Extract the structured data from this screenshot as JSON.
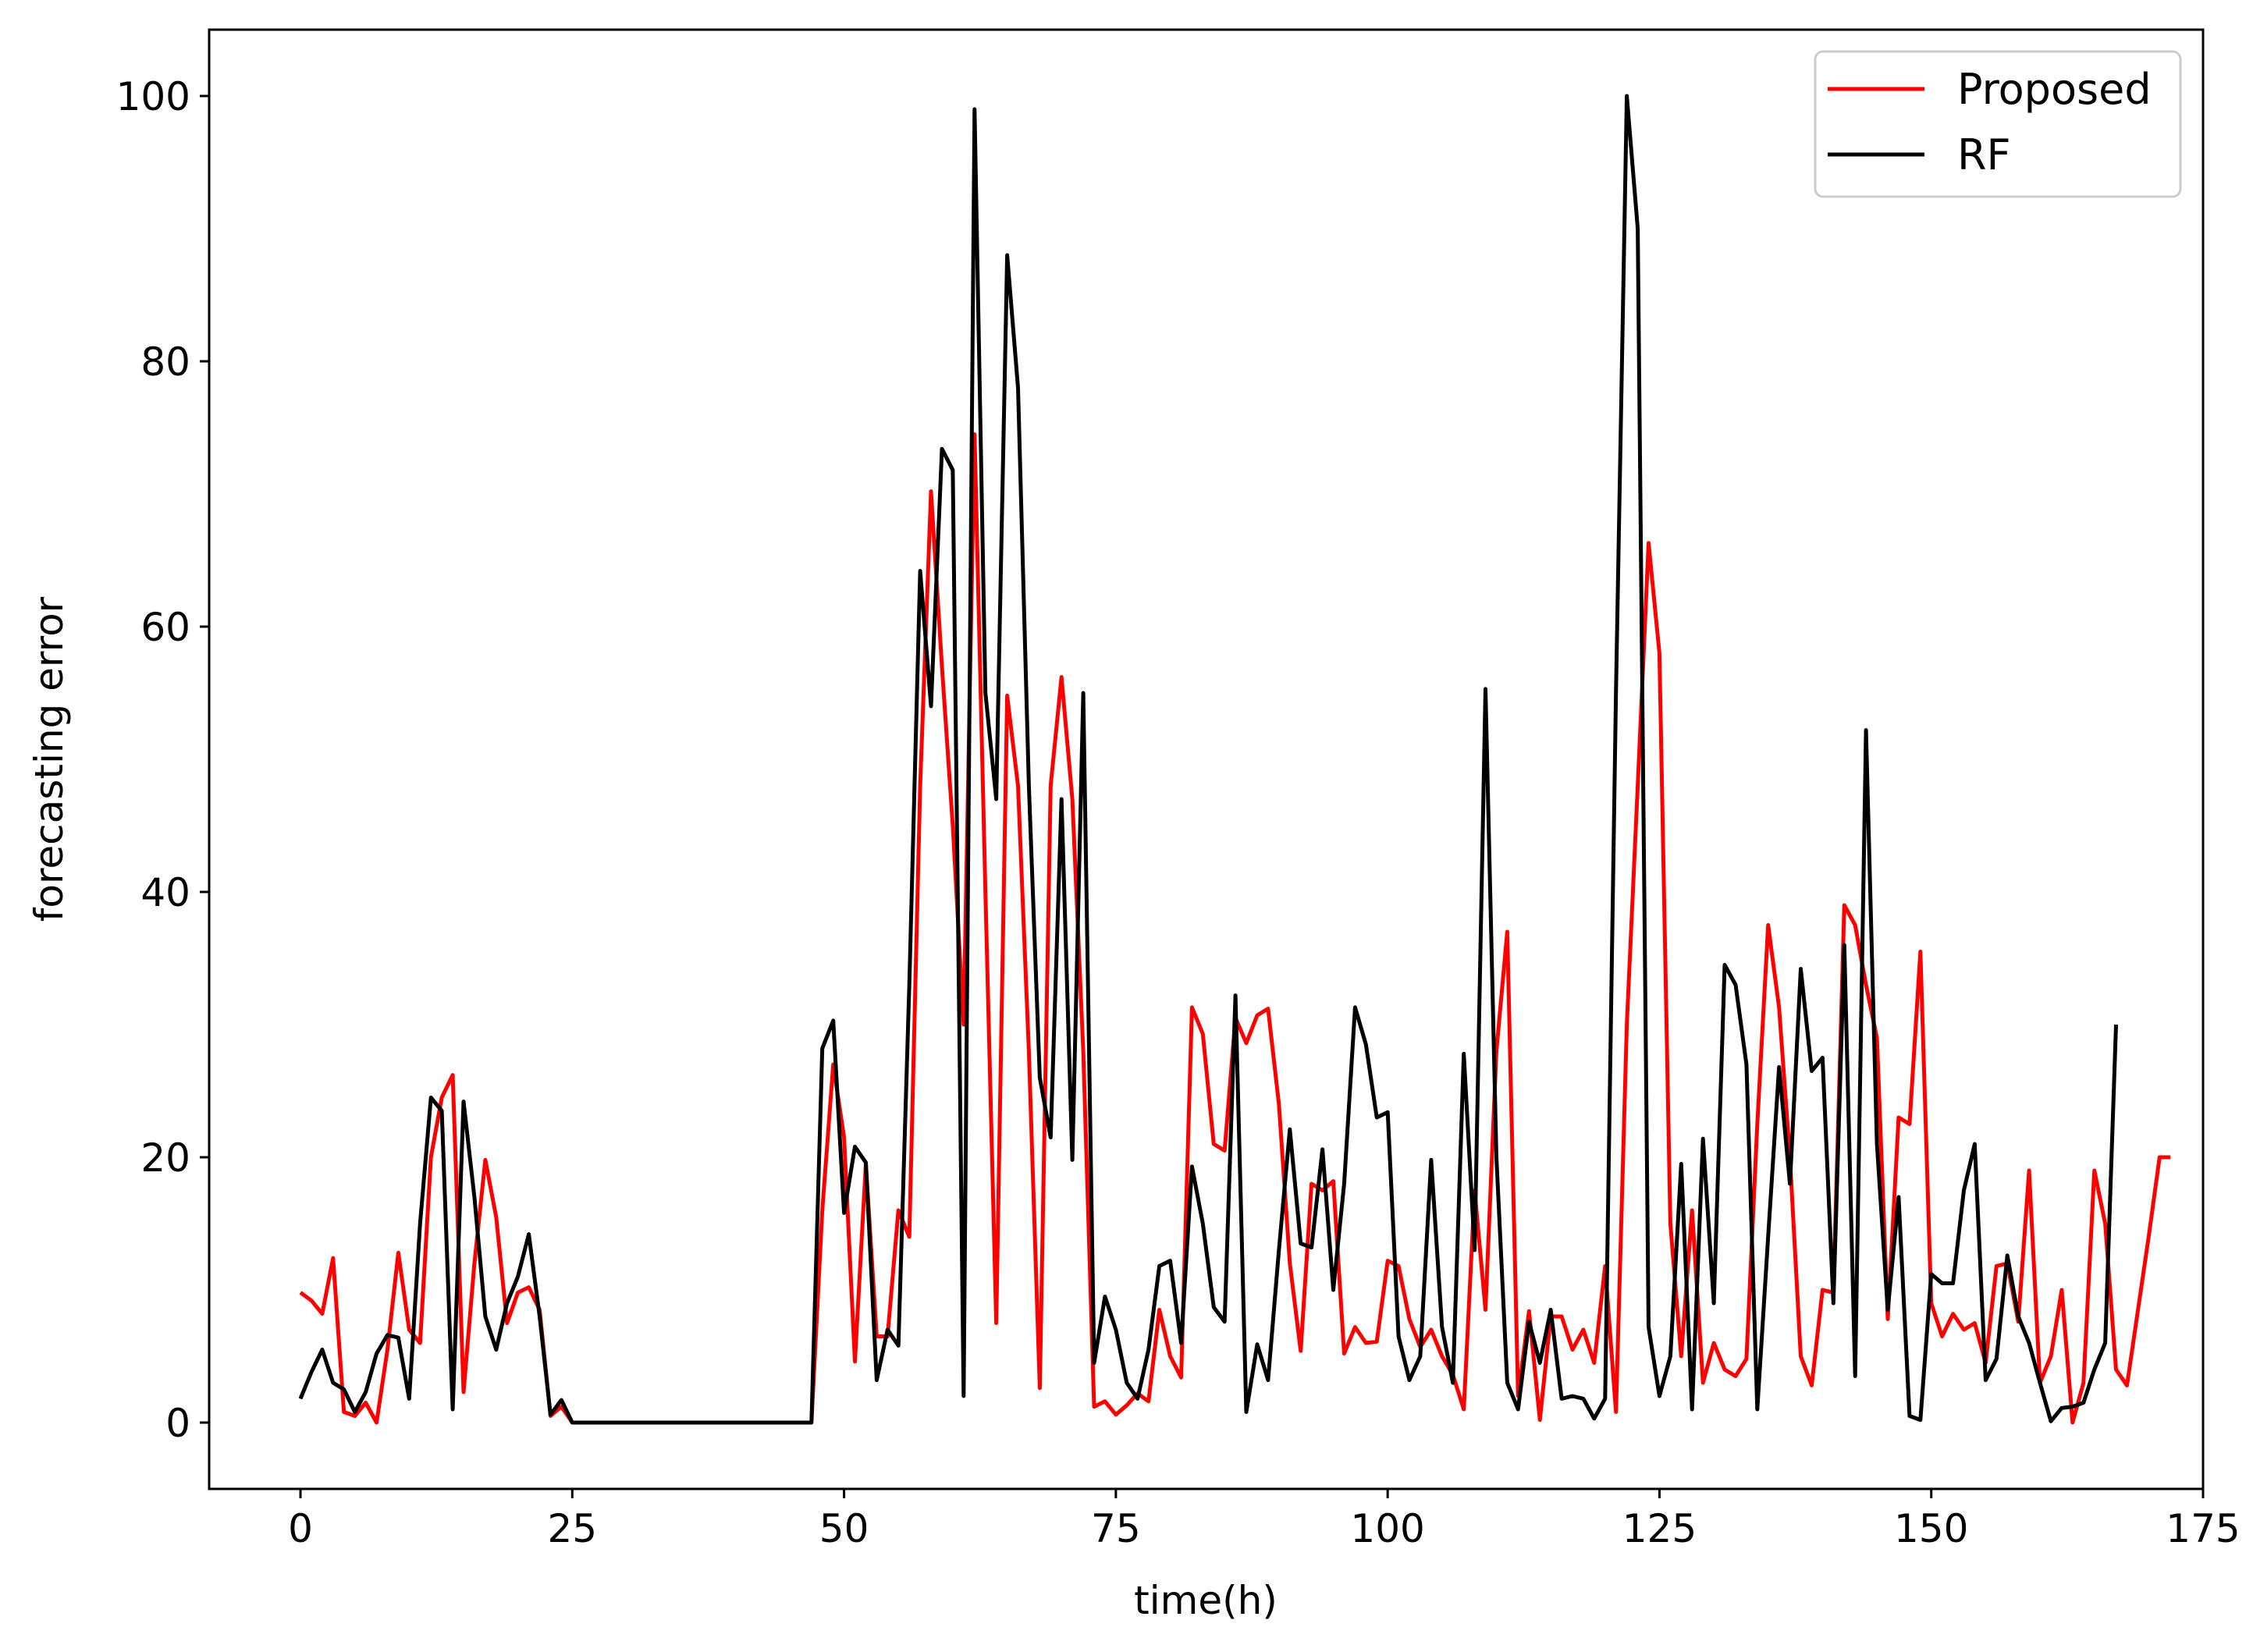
{
  "chart_data": {
    "type": "line",
    "title": "",
    "xlabel": "time(h)",
    "ylabel": "forecasting error",
    "xlim": [
      -8.4,
      175
    ],
    "ylim": [
      -5,
      105
    ],
    "xticks": [
      0,
      25,
      50,
      75,
      100,
      125,
      150,
      175
    ],
    "yticks": [
      0,
      20,
      40,
      60,
      80,
      100
    ],
    "grid": false,
    "legend_position": "top-right",
    "series": [
      {
        "name": "Proposed",
        "color": "#ff0000",
        "values": [
          9.8,
          9.2,
          8.2,
          12.4,
          0.8,
          0.5,
          1.5,
          0.0,
          5.5,
          12.8,
          7.0,
          6.0,
          20.0,
          24.5,
          26.2,
          2.3,
          12.0,
          19.8,
          15.5,
          7.5,
          9.8,
          10.2,
          8.5,
          0.5,
          1.2,
          0.0,
          0.0,
          0.0,
          0.0,
          0.0,
          0.0,
          0.0,
          0.0,
          0.0,
          0.0,
          0.0,
          0.0,
          0.0,
          0.0,
          0.0,
          0.0,
          0.0,
          0.0,
          0.0,
          0.0,
          0.0,
          0.0,
          0.0,
          16.0,
          27.0,
          21.5,
          4.6,
          19.5,
          6.5,
          6.5,
          16.0,
          14.0,
          48.0,
          70.2,
          57.0,
          45.0,
          30.0,
          74.5,
          40.0,
          7.5,
          54.8,
          48.0,
          28.0,
          2.6,
          48.0,
          56.2,
          47.0,
          28.0,
          1.2,
          1.6,
          0.6,
          1.3,
          2.2,
          1.6,
          8.5,
          5.0,
          3.4,
          31.3,
          29.3,
          21.0,
          20.5,
          30.5,
          28.6,
          30.7,
          31.2,
          24.0,
          12.0,
          5.4,
          18.0,
          17.5,
          18.2,
          5.2,
          7.2,
          6.0,
          6.1,
          12.2,
          11.8,
          7.8,
          5.7,
          7.0,
          5.0,
          3.6,
          1.0,
          17.5,
          8.5,
          28.0,
          37.0,
          2.0,
          8.4,
          0.2,
          8.0,
          8.0,
          5.5,
          7.0,
          4.5,
          11.8,
          0.8,
          30.0,
          48.0,
          66.3,
          58.0,
          15.0,
          5.0,
          16.0,
          3.0,
          6.0,
          4.0,
          3.5,
          4.8,
          22.5,
          37.5,
          31.3,
          20.0,
          5.0,
          2.8,
          10.0,
          9.8,
          39.0,
          37.5,
          33.0,
          29.0,
          7.8,
          23.0,
          22.5,
          35.5,
          9.0,
          6.5,
          8.2,
          7.0,
          7.5,
          4.5,
          11.8,
          12.0,
          7.6,
          19.0,
          3.0,
          5.0,
          10.0,
          0.0,
          3.0,
          19.0,
          15.0,
          4.0,
          2.8,
          8.4,
          14.0,
          20.0,
          20.0
        ]
      },
      {
        "name": "RF",
        "color": "#000000",
        "values": [
          1.8,
          3.8,
          5.5,
          3.0,
          2.5,
          0.8,
          2.3,
          5.2,
          6.6,
          6.4,
          1.8,
          15.0,
          24.5,
          23.5,
          1.0,
          24.2,
          17.0,
          8.0,
          5.5,
          9.0,
          11.0,
          14.2,
          8.0,
          0.6,
          1.7,
          0.0,
          0.0,
          0.0,
          0.0,
          0.0,
          0.0,
          0.0,
          0.0,
          0.0,
          0.0,
          0.0,
          0.0,
          0.0,
          0.0,
          0.0,
          0.0,
          0.0,
          0.0,
          0.0,
          0.0,
          0.0,
          0.0,
          0.0,
          28.2,
          30.3,
          15.8,
          20.8,
          19.6,
          3.2,
          7.0,
          5.8,
          33.0,
          64.2,
          54.0,
          73.4,
          71.8,
          2.0,
          99.0,
          55.0,
          47.0,
          88.0,
          78.0,
          48.0,
          26.0,
          21.5,
          47.0,
          19.8,
          55.0,
          4.5,
          9.5,
          7.0,
          3.0,
          1.8,
          5.5,
          11.8,
          12.2,
          6.0,
          19.3,
          15.0,
          8.7,
          7.6,
          32.2,
          0.8,
          5.9,
          3.2,
          13.0,
          22.1,
          13.5,
          13.2,
          20.6,
          10.0,
          18.0,
          31.3,
          28.5,
          23.0,
          23.4,
          6.5,
          3.2,
          5.0,
          19.8,
          7.2,
          3.0,
          27.8,
          13.0,
          55.3,
          20.0,
          3.0,
          1.0,
          7.6,
          4.5,
          8.5,
          1.8,
          2.0,
          1.8,
          0.3,
          1.8,
          55.0,
          100.0,
          90.0,
          7.2,
          2.0,
          5.0,
          19.5,
          1.0,
          21.4,
          9.0,
          34.5,
          33.0,
          27.0,
          1.0,
          14.0,
          26.8,
          18.0,
          34.2,
          26.5,
          27.5,
          9.0,
          36.0,
          3.5,
          52.2,
          21.0,
          8.5,
          17.0,
          0.5,
          0.2,
          11.2,
          10.5,
          10.5,
          17.5,
          21.0,
          3.2,
          4.8,
          12.6,
          8.0,
          6.0,
          3.0,
          0.1,
          1.1,
          1.2,
          1.5,
          4.0,
          6.0,
          30.0
        ]
      }
    ]
  }
}
